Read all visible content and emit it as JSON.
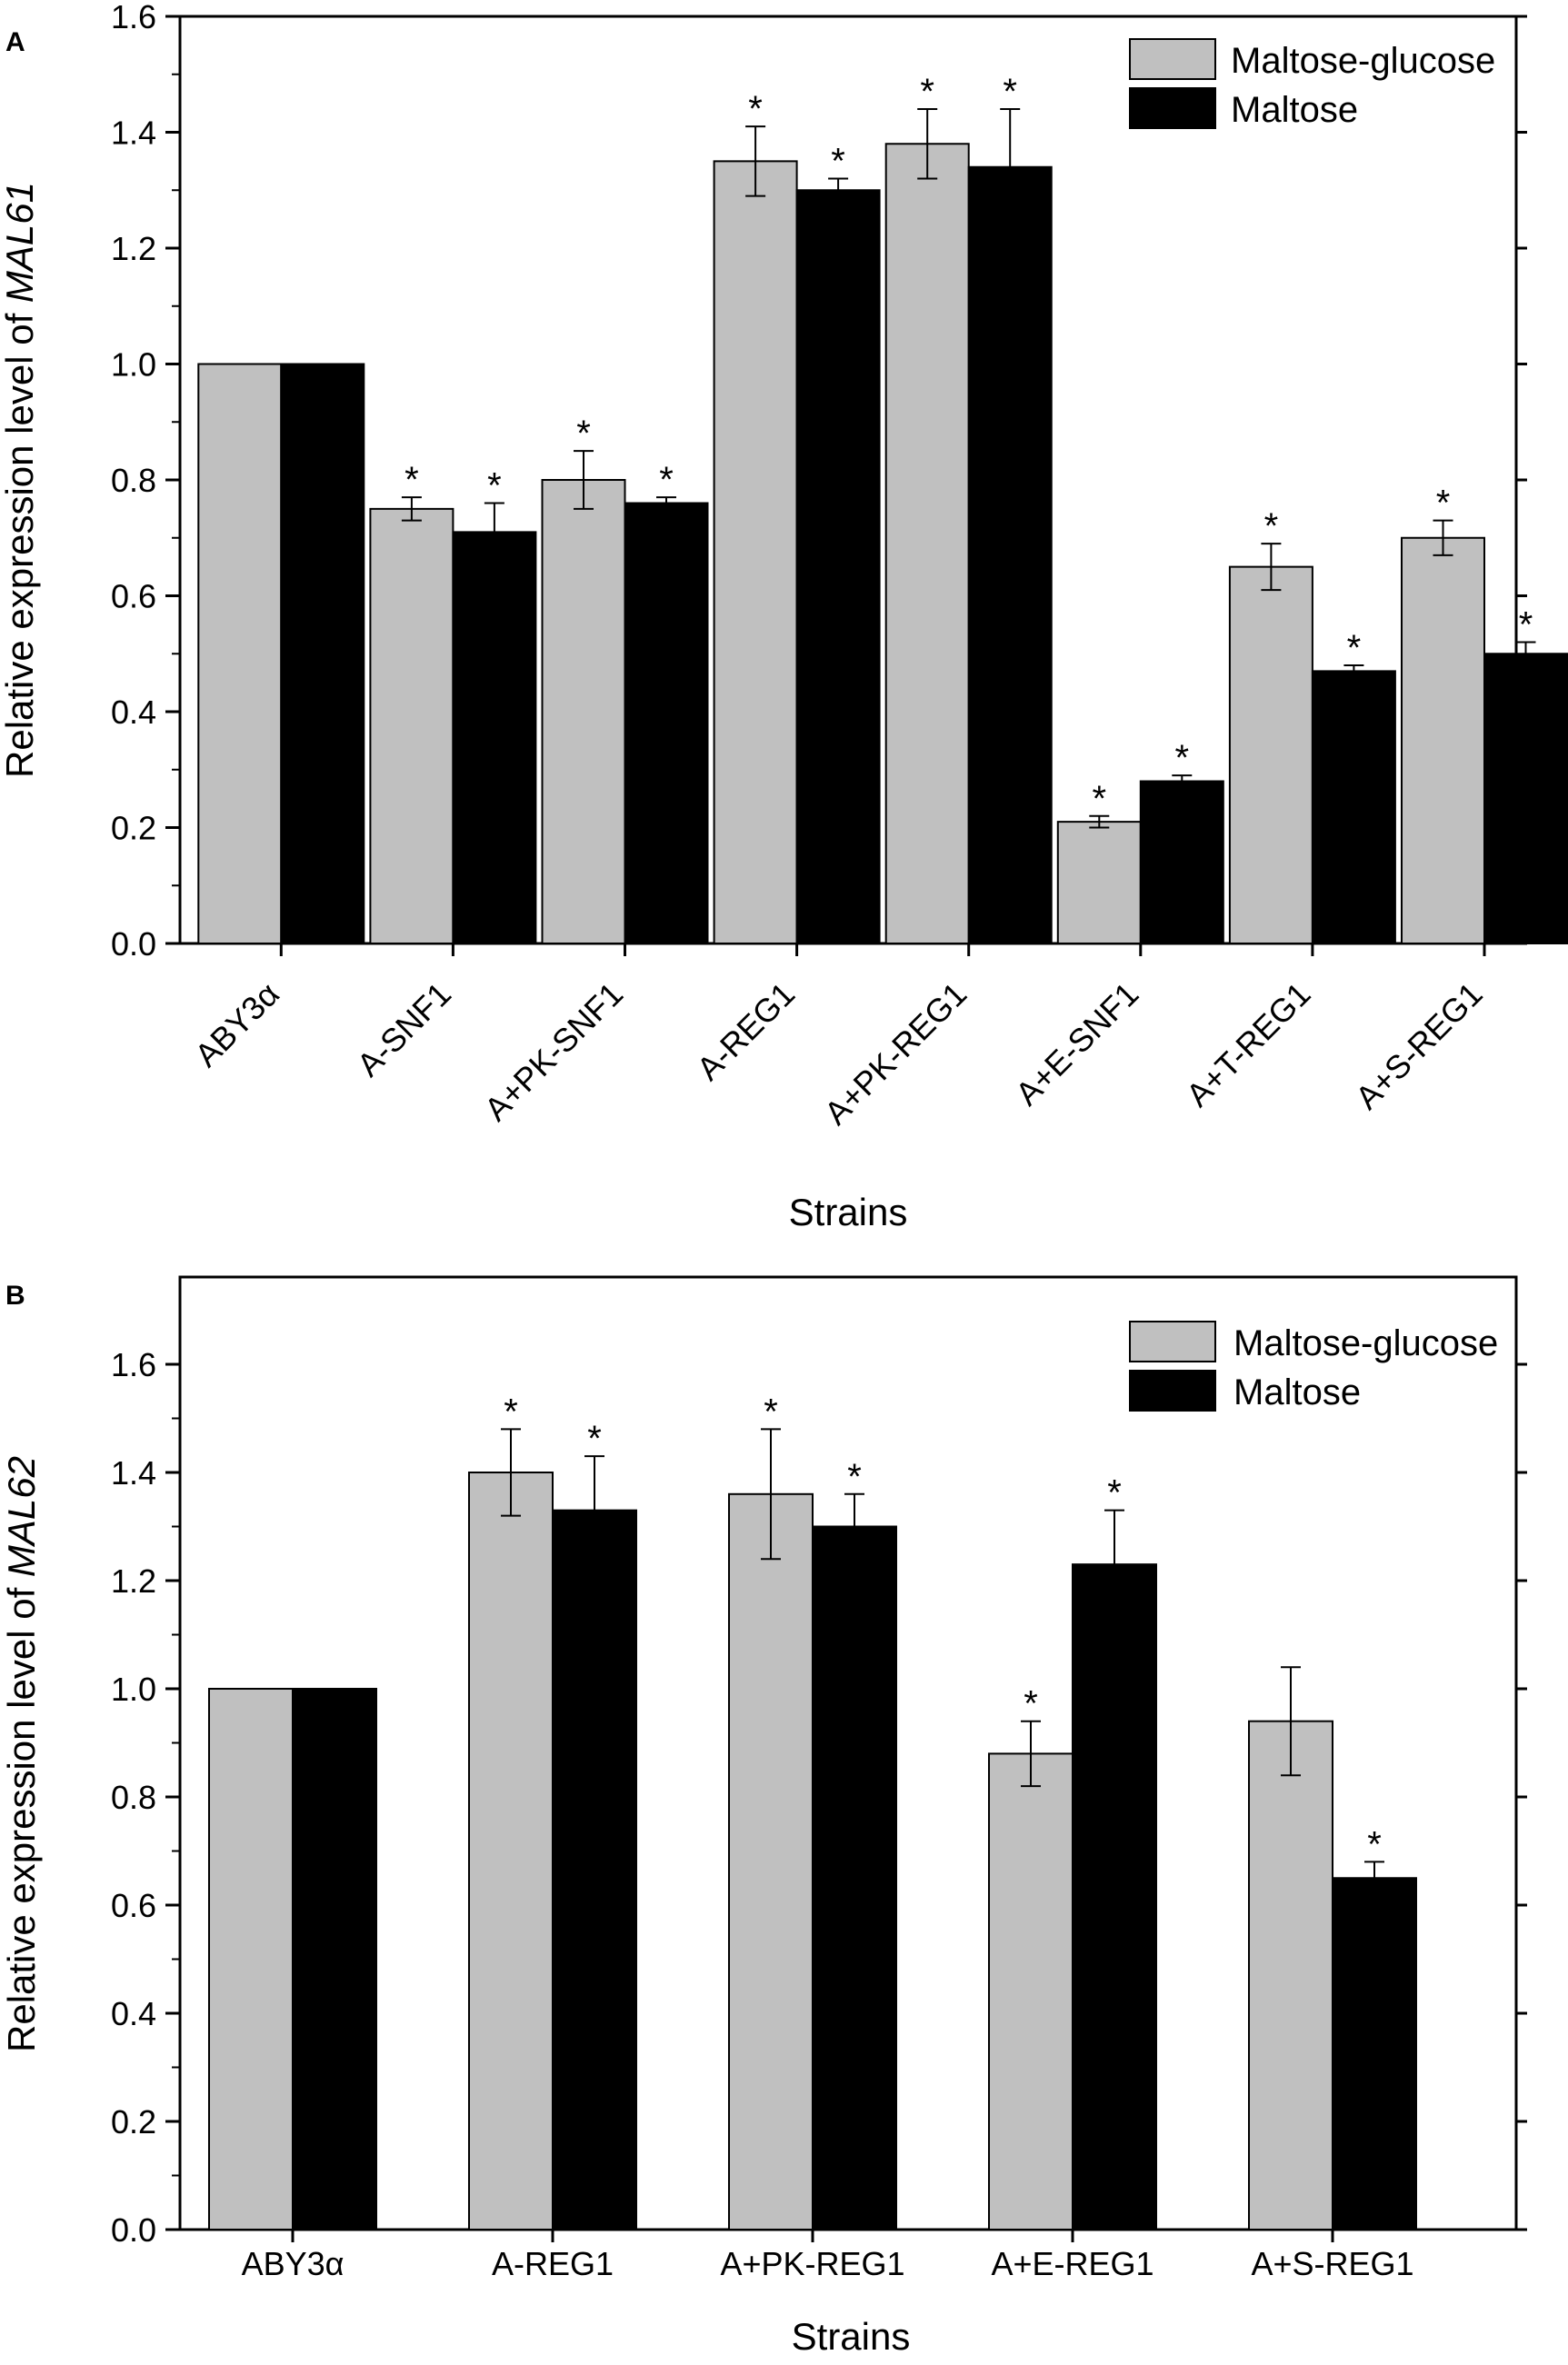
{
  "figure": {
    "panels": [
      "A",
      "B"
    ]
  },
  "colors": {
    "series_maltose_glucose": "#c0c0c0",
    "series_maltose": "#000000",
    "axis": "#000000"
  },
  "chart_data": [
    {
      "type": "bar",
      "panel": "A",
      "title": "",
      "xlabel": "Strains",
      "ylabel_prefix": "Relative expression level of ",
      "ylabel_gene": "MAL61",
      "ylim": [
        0,
        1.6
      ],
      "yticks": [
        0.0,
        0.2,
        0.4,
        0.6,
        0.8,
        1.0,
        1.2,
        1.4,
        1.6
      ],
      "ytick_labels": [
        "0.0",
        "0.2",
        "0.4",
        "0.6",
        "0.8",
        "1.0",
        "1.2",
        "1.4",
        "1.6"
      ],
      "categories": [
        "ABY3α",
        "A-SNF1",
        "A+PK-SNF1",
        "A-REG1",
        "A+PK-REG1",
        "A+E-SNF1",
        "A+T-REG1",
        "A+S-REG1"
      ],
      "legend_position": "top-right",
      "significance_marker": "*",
      "series": [
        {
          "name": "Maltose-glucose",
          "values": [
            1.0,
            0.75,
            0.8,
            1.35,
            1.38,
            0.21,
            0.65,
            0.7
          ],
          "errors": [
            0,
            0.02,
            0.05,
            0.06,
            0.06,
            0.01,
            0.04,
            0.03
          ],
          "significant": [
            false,
            true,
            true,
            true,
            true,
            true,
            true,
            true
          ]
        },
        {
          "name": "Maltose",
          "values": [
            1.0,
            0.71,
            0.76,
            1.3,
            1.34,
            0.28,
            0.47,
            0.5
          ],
          "errors": [
            0,
            0.05,
            0.01,
            0.02,
            0.1,
            0.01,
            0.01,
            0.02
          ],
          "significant": [
            false,
            true,
            true,
            true,
            true,
            true,
            true,
            true
          ]
        }
      ]
    },
    {
      "type": "bar",
      "panel": "B",
      "title": "",
      "xlabel": "Strains",
      "ylabel_prefix": "Relative expression level of ",
      "ylabel_gene": "MAL62",
      "ylim": [
        0,
        1.7
      ],
      "yticks": [
        0.0,
        0.2,
        0.4,
        0.6,
        0.8,
        1.0,
        1.2,
        1.4,
        1.6
      ],
      "ytick_labels": [
        "0.0",
        "0.2",
        "0.4",
        "0.6",
        "0.8",
        "1.0",
        "1.2",
        "1.4",
        "1.6"
      ],
      "categories": [
        "ABY3α",
        "A-REG1",
        "A+PK-REG1",
        "A+E-REG1",
        "A+S-REG1"
      ],
      "legend_position": "top-right",
      "significance_marker": "*",
      "series": [
        {
          "name": "Maltose-glucose",
          "values": [
            1.0,
            1.4,
            1.36,
            0.88,
            0.94
          ],
          "errors": [
            0,
            0.08,
            0.12,
            0.06,
            0.1
          ],
          "significant": [
            false,
            true,
            true,
            true,
            false
          ]
        },
        {
          "name": "Maltose",
          "values": [
            1.0,
            1.33,
            1.3,
            1.23,
            0.65
          ],
          "errors": [
            0,
            0.1,
            0.06,
            0.1,
            0.03
          ],
          "significant": [
            false,
            true,
            true,
            true,
            true
          ]
        }
      ]
    }
  ]
}
